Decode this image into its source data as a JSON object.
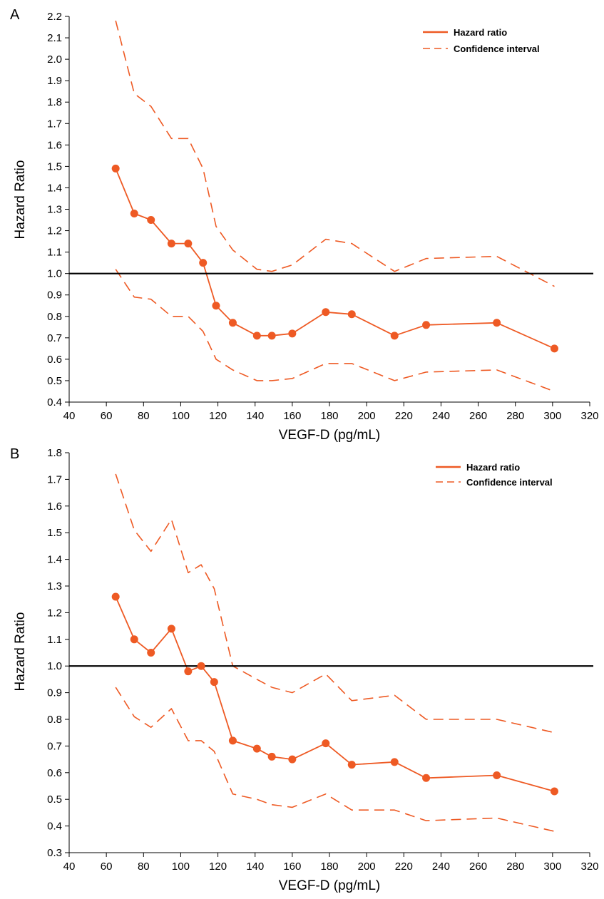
{
  "colors": {
    "series": "#ee5a24",
    "reference_line": "#000000",
    "axis": "#000000"
  },
  "chart_data": [
    {
      "panel": "A",
      "type": "line",
      "xlabel": "VEGF-D (pg/mL)",
      "ylabel": "Hazard Ratio",
      "xlim": [
        40,
        320
      ],
      "ylim": [
        0.4,
        2.2
      ],
      "x_ticks": [
        40,
        60,
        80,
        100,
        120,
        140,
        160,
        180,
        200,
        220,
        240,
        260,
        280,
        300,
        320
      ],
      "y_ticks": [
        0.4,
        0.5,
        0.6,
        0.7,
        0.8,
        0.9,
        1.0,
        1.1,
        1.2,
        1.3,
        1.4,
        1.5,
        1.6,
        1.7,
        1.8,
        1.9,
        2.0,
        2.1,
        2.2
      ],
      "reference_line": 1.0,
      "grid": false,
      "legend_position": "top-right",
      "series": [
        {
          "name": "Hazard ratio",
          "style": "solid-with-markers",
          "x": [
            65,
            75,
            84,
            95,
            104,
            112,
            119,
            128,
            141,
            149,
            160,
            178,
            192,
            215,
            232,
            270,
            301
          ],
          "y": [
            1.49,
            1.28,
            1.25,
            1.14,
            1.14,
            1.05,
            0.85,
            0.77,
            0.71,
            0.71,
            0.72,
            0.82,
            0.81,
            0.71,
            0.76,
            0.77,
            0.65
          ]
        },
        {
          "name": "Confidence interval",
          "style": "dashed",
          "x": [
            65,
            75,
            84,
            95,
            104,
            112,
            119,
            128,
            141,
            149,
            160,
            178,
            192,
            215,
            232,
            270,
            301
          ],
          "y": [
            2.18,
            1.84,
            1.78,
            1.63,
            1.63,
            1.49,
            1.22,
            1.11,
            1.02,
            1.01,
            1.04,
            1.16,
            1.14,
            1.01,
            1.07,
            1.08,
            0.94
          ]
        },
        {
          "name": "",
          "style": "dashed",
          "x": [
            65,
            75,
            84,
            95,
            104,
            112,
            119,
            128,
            141,
            149,
            160,
            178,
            192,
            215,
            232,
            270,
            301
          ],
          "y": [
            1.02,
            0.89,
            0.88,
            0.8,
            0.8,
            0.73,
            0.6,
            0.55,
            0.5,
            0.5,
            0.51,
            0.58,
            0.58,
            0.5,
            0.54,
            0.55,
            0.45
          ]
        }
      ]
    },
    {
      "panel": "B",
      "type": "line",
      "xlabel": "VEGF-D (pg/mL)",
      "ylabel": "Hazard Ratio",
      "xlim": [
        40,
        320
      ],
      "ylim": [
        0.3,
        1.8
      ],
      "x_ticks": [
        40,
        60,
        80,
        100,
        120,
        140,
        160,
        180,
        200,
        220,
        240,
        260,
        280,
        300,
        320
      ],
      "y_ticks": [
        0.3,
        0.4,
        0.5,
        0.6,
        0.7,
        0.8,
        0.9,
        1.0,
        1.1,
        1.2,
        1.3,
        1.4,
        1.5,
        1.6,
        1.7,
        1.8
      ],
      "reference_line": 1.0,
      "grid": false,
      "legend_position": "top-right",
      "series": [
        {
          "name": "Hazard ratio",
          "style": "solid-with-markers",
          "x": [
            65,
            75,
            84,
            95,
            104,
            111,
            118,
            128,
            141,
            149,
            160,
            178,
            192,
            215,
            232,
            270,
            301
          ],
          "y": [
            1.26,
            1.1,
            1.05,
            1.14,
            0.98,
            1.0,
            0.94,
            0.72,
            0.69,
            0.66,
            0.65,
            0.71,
            0.63,
            0.64,
            0.58,
            0.59,
            0.53
          ]
        },
        {
          "name": "Confidence interval",
          "style": "dashed",
          "x": [
            65,
            75,
            84,
            95,
            104,
            111,
            118,
            128,
            141,
            149,
            160,
            178,
            192,
            215,
            232,
            270,
            301
          ],
          "y": [
            1.72,
            1.51,
            1.43,
            1.55,
            1.35,
            1.38,
            1.29,
            1.0,
            0.95,
            0.92,
            0.9,
            0.97,
            0.87,
            0.89,
            0.8,
            0.8,
            0.75
          ]
        },
        {
          "name": "",
          "style": "dashed",
          "x": [
            65,
            75,
            84,
            95,
            104,
            111,
            118,
            128,
            141,
            149,
            160,
            178,
            192,
            215,
            232,
            270,
            301
          ],
          "y": [
            0.92,
            0.81,
            0.77,
            0.84,
            0.72,
            0.72,
            0.68,
            0.52,
            0.5,
            0.48,
            0.47,
            0.52,
            0.46,
            0.46,
            0.42,
            0.43,
            0.38
          ]
        }
      ]
    }
  ]
}
